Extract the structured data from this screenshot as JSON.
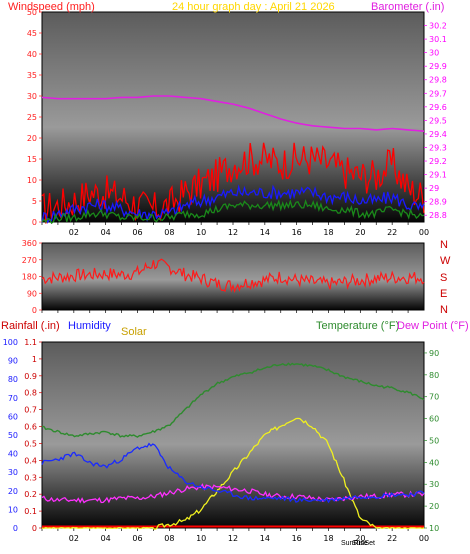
{
  "header": {
    "windspeed_label": "Windspeed (mph)",
    "title": "24 hour graph day : April 21 2026",
    "barometer_label": "Barometer (.in)"
  },
  "compass": [
    "N",
    "W",
    "S",
    "E",
    "N"
  ],
  "lower_labels": {
    "rainfall": "Rainfall (.in)",
    "humidity": "Humidity",
    "solar": "Solar",
    "temperature": "Temperature (°F)",
    "dew_point": "Dew Point (°F)",
    "sunrise": "SunRise",
    "sunset": "SunSet"
  },
  "colors": {
    "wind_gust": "#ff0000",
    "wind_avg": "#1a1aff",
    "wind_low": "#1a8a1a",
    "barometer": "#e020e0",
    "direction": "#ff1a1a",
    "temperature": "#2e8b2e",
    "humidity": "#1a2aff",
    "dew_point": "#ff30ff",
    "solar": "#f0f020",
    "rain": "#ff0000",
    "left_axis": "#ff2020",
    "right_axis": "#ff00ff",
    "humidity_axis": "#1a1aff",
    "rain_axis": "#cc0000",
    "temp_axis": "#2e8b2e",
    "solar_label": "#c8a000"
  },
  "chart_data": [
    {
      "type": "line",
      "x_ticks": [
        "02",
        "04",
        "06",
        "08",
        "10",
        "12",
        "14",
        "16",
        "18",
        "20",
        "22",
        "00"
      ],
      "ylabel": "Windspeed (mph)",
      "y_ticks": [
        0,
        5,
        10,
        15,
        20,
        25,
        30,
        35,
        40,
        45,
        50
      ],
      "ylim": [
        0,
        50
      ],
      "y2label": "Barometer (.in)",
      "y2_ticks": [
        "28.8",
        "28.9",
        "29",
        "29.1",
        "29.2",
        "29.3",
        "29.4",
        "29.5",
        "29.6",
        "29.7",
        "29.8",
        "29.9",
        "30",
        "30.1",
        "30.2"
      ],
      "y2lim": [
        28.75,
        30.3
      ],
      "hours": [
        0,
        1,
        2,
        3,
        4,
        5,
        6,
        7,
        8,
        9,
        10,
        11,
        12,
        13,
        14,
        15,
        16,
        17,
        18,
        19,
        20,
        21,
        22,
        23,
        24
      ],
      "series": [
        {
          "key": "gust",
          "values": [
            3,
            4,
            5,
            7,
            7,
            6,
            4,
            3,
            4,
            7,
            9,
            11,
            14,
            15,
            15,
            14,
            15,
            15,
            14,
            12,
            11,
            11,
            14,
            8,
            6
          ]
        },
        {
          "key": "avg",
          "values": [
            1,
            2,
            3,
            4,
            4,
            3,
            2,
            2,
            2,
            4,
            5,
            6,
            7,
            7,
            7,
            7,
            7,
            7,
            6,
            6,
            5,
            5,
            6,
            4,
            3
          ]
        },
        {
          "key": "low",
          "values": [
            0,
            1,
            1,
            2,
            2,
            1,
            1,
            1,
            1,
            2,
            2,
            3,
            4,
            4,
            4,
            4,
            4,
            4,
            3,
            3,
            2,
            2,
            3,
            2,
            1
          ]
        },
        {
          "key": "barometer",
          "values": [
            29.67,
            29.66,
            29.66,
            29.66,
            29.66,
            29.67,
            29.67,
            29.68,
            29.68,
            29.67,
            29.66,
            29.64,
            29.62,
            29.59,
            29.55,
            29.51,
            29.48,
            29.46,
            29.45,
            29.44,
            29.44,
            29.43,
            29.44,
            29.43,
            29.42
          ]
        }
      ]
    },
    {
      "type": "line",
      "y_ticks": [
        0,
        90,
        180,
        270,
        360
      ],
      "ylim": [
        0,
        360
      ],
      "hours": [
        0,
        1,
        2,
        3,
        4,
        5,
        6,
        7,
        8,
        9,
        10,
        11,
        12,
        13,
        14,
        15,
        16,
        17,
        18,
        19,
        20,
        21,
        22,
        23,
        24
      ],
      "series": [
        {
          "key": "direction",
          "values": [
            170,
            175,
            185,
            190,
            195,
            190,
            200,
            250,
            230,
            190,
            170,
            140,
            130,
            150,
            160,
            180,
            160,
            150,
            140,
            150,
            160,
            170,
            175,
            175,
            175
          ]
        }
      ]
    },
    {
      "type": "line",
      "x_ticks": [
        "02",
        "04",
        "06",
        "08",
        "10",
        "12",
        "14",
        "16",
        "18",
        "20",
        "22",
        "00"
      ],
      "y_left_rain_ticks": [
        "0",
        "0.1",
        "0.2",
        "0.3",
        "0.4",
        "0.5",
        "0.6",
        "0.7",
        "0.8",
        "0.9",
        "1",
        "1.1"
      ],
      "y_left_rain_lim": [
        0,
        1.1
      ],
      "y_humidity_ticks": [
        0,
        10,
        20,
        30,
        40,
        50,
        60,
        70,
        80,
        90,
        100
      ],
      "y_humidity_lim": [
        0,
        100
      ],
      "y_temp_ticks": [
        10,
        20,
        30,
        40,
        50,
        60,
        70,
        80,
        90
      ],
      "y_temp_lim": [
        10,
        95
      ],
      "hours": [
        0,
        1,
        2,
        3,
        4,
        5,
        6,
        7,
        8,
        9,
        10,
        11,
        12,
        13,
        14,
        15,
        16,
        17,
        18,
        19,
        20,
        21,
        22,
        23,
        24
      ],
      "series": [
        {
          "key": "temperature",
          "values": [
            56,
            54,
            52,
            53,
            54,
            52,
            52,
            54,
            57,
            64,
            71,
            76,
            79,
            81,
            83,
            85,
            85,
            84,
            82,
            79,
            77,
            75,
            74,
            72,
            69
          ]
        },
        {
          "key": "humidity",
          "values": [
            35,
            37,
            40,
            35,
            33,
            37,
            43,
            45,
            32,
            25,
            22,
            20,
            18,
            16,
            16,
            16,
            15,
            15,
            15,
            16,
            17,
            17,
            18,
            18,
            19
          ]
        },
        {
          "key": "dew_point",
          "values": [
            16,
            15,
            15,
            15,
            15,
            16,
            16,
            17,
            19,
            21,
            22,
            22,
            21,
            20,
            18,
            17,
            17,
            16,
            15,
            16,
            17,
            17,
            18,
            18,
            18
          ]
        },
        {
          "key": "solar",
          "values": [
            0,
            0,
            0,
            0,
            0,
            0,
            0,
            0,
            2,
            4,
            10,
            20,
            30,
            40,
            50,
            55,
            60,
            55,
            45,
            25,
            5,
            0,
            0,
            0,
            0
          ]
        }
      ]
    }
  ]
}
